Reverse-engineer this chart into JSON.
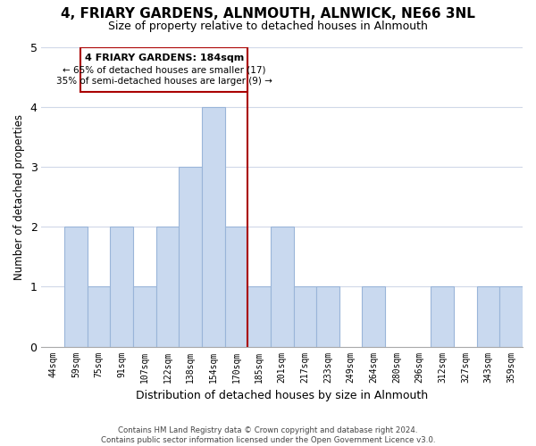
{
  "title": "4, FRIARY GARDENS, ALNMOUTH, ALNWICK, NE66 3NL",
  "subtitle": "Size of property relative to detached houses in Alnmouth",
  "xlabel": "Distribution of detached houses by size in Alnmouth",
  "ylabel": "Number of detached properties",
  "bin_labels": [
    "44sqm",
    "59sqm",
    "75sqm",
    "91sqm",
    "107sqm",
    "122sqm",
    "138sqm",
    "154sqm",
    "170sqm",
    "185sqm",
    "201sqm",
    "217sqm",
    "233sqm",
    "249sqm",
    "264sqm",
    "280sqm",
    "296sqm",
    "312sqm",
    "327sqm",
    "343sqm",
    "359sqm"
  ],
  "bar_heights": [
    0,
    2,
    1,
    2,
    1,
    2,
    3,
    4,
    2,
    1,
    2,
    1,
    1,
    0,
    1,
    0,
    0,
    1,
    0,
    1,
    1
  ],
  "bar_color": "#c9d9ef",
  "bar_edge_color": "#9ab5d9",
  "highlight_color": "#aa0000",
  "property_line_label": "4 FRIARY GARDENS: 184sqm",
  "annotation_line1": "← 65% of detached houses are smaller (17)",
  "annotation_line2": "35% of semi-detached houses are larger (9) →",
  "annotation_box_color": "#ffffff",
  "annotation_box_edge": "#aa0000",
  "ylim": [
    0,
    5
  ],
  "yticks": [
    0,
    1,
    2,
    3,
    4,
    5
  ],
  "footer1": "Contains HM Land Registry data © Crown copyright and database right 2024.",
  "footer2": "Contains public sector information licensed under the Open Government Licence v3.0.",
  "background_color": "#ffffff",
  "grid_color": "#d0d8e8"
}
